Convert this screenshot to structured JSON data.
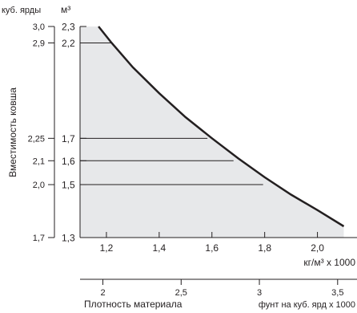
{
  "chart_data": {
    "type": "area",
    "x_axis": {
      "label": "кг/м³ x 1000",
      "range": [
        1.1,
        2.15
      ],
      "ticks": [
        1.2,
        1.4,
        1.6,
        1.8,
        2.0
      ],
      "tick_labels": [
        "1,2",
        "1,4",
        "1,6",
        "1,8",
        "2,0"
      ]
    },
    "x_axis_secondary": {
      "label_left": "Плотность материала",
      "label_right": "фунт на куб. ярд x 1000",
      "ticks": [
        2,
        2.5,
        3,
        3.5
      ],
      "tick_labels": [
        "2",
        "2,5",
        "3",
        "3,5"
      ],
      "unit_factor": 1.6855
    },
    "y_axis": {
      "unit": "м³",
      "title": "Вместимость ковша",
      "range": [
        1.3,
        2.3
      ],
      "ticks": [
        1.3,
        1.5,
        1.6,
        1.7,
        2.2,
        2.3
      ],
      "tick_labels": [
        "1,3",
        "1,5",
        "1,6",
        "1,7",
        "2,2",
        "2,3"
      ]
    },
    "y_axis_secondary": {
      "unit": "куб. ярды",
      "ticks": [
        1.7,
        2.0,
        2.1,
        2.25,
        2.9,
        3.0
      ],
      "tick_labels": [
        "1,7",
        "2,0",
        "2,1",
        "2,25",
        "2,9",
        "3,0"
      ],
      "positions_m3": [
        1.3,
        1.5,
        1.6,
        1.7,
        2.2,
        2.3
      ]
    },
    "scale": "log",
    "grid_lines_y": [
      2.2,
      1.7,
      1.6,
      1.5
    ],
    "series": [
      {
        "x": [
          1.17,
          1.22,
          1.3,
          1.4,
          1.5,
          1.6,
          1.7,
          1.8,
          1.9,
          2.0,
          2.1
        ],
        "y": [
          2.3,
          2.2,
          2.06,
          1.92,
          1.8,
          1.7,
          1.61,
          1.53,
          1.46,
          1.4,
          1.34
        ]
      }
    ],
    "colors": {
      "fill": "#e7e8ea",
      "line": "#231f20"
    }
  }
}
